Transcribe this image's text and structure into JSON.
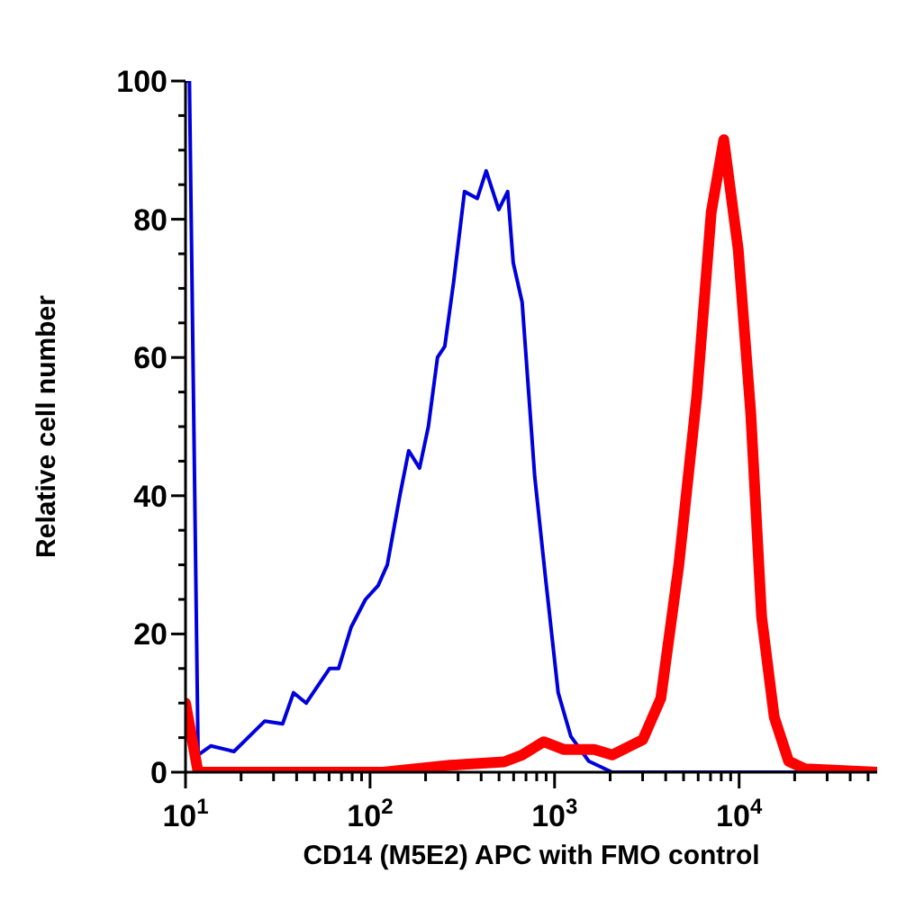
{
  "chart_data": {
    "type": "line",
    "xlabel": "CD14 (M5E2) APC with FMO control",
    "ylabel": "Relative cell number",
    "log": "x",
    "grid": false,
    "legend": false,
    "marker": "none",
    "line_style": "solid",
    "xlim": [
      10,
      56000
    ],
    "xticks": [
      {
        "value": 10,
        "label": "10$^{1}$"
      },
      {
        "value": 20,
        "label": null
      },
      {
        "value": 30,
        "label": null
      },
      {
        "value": 40,
        "label": null
      },
      {
        "value": 50,
        "label": null
      },
      {
        "value": 60,
        "label": null
      },
      {
        "value": 70,
        "label": null
      },
      {
        "value": 80,
        "label": null
      },
      {
        "value": 90,
        "label": null
      },
      {
        "value": 100,
        "label": "10$^{2}$"
      },
      {
        "value": 200,
        "label": null
      },
      {
        "value": 300,
        "label": null
      },
      {
        "value": 400,
        "label": null
      },
      {
        "value": 500,
        "label": null
      },
      {
        "value": 600,
        "label": null
      },
      {
        "value": 700,
        "label": null
      },
      {
        "value": 800,
        "label": null
      },
      {
        "value": 900,
        "label": null
      },
      {
        "value": 1000,
        "label": "10$^{3}$"
      },
      {
        "value": 2000,
        "label": null
      },
      {
        "value": 3000,
        "label": null
      },
      {
        "value": 4000,
        "label": null
      },
      {
        "value": 5000,
        "label": null
      },
      {
        "value": 6000,
        "label": null
      },
      {
        "value": 7000,
        "label": null
      },
      {
        "value": 8000,
        "label": null
      },
      {
        "value": 9000,
        "label": null
      },
      {
        "value": 10000,
        "label": "10$^{4}$"
      },
      {
        "value": 20000,
        "label": null
      },
      {
        "value": 30000,
        "label": null
      },
      {
        "value": 40000,
        "label": null
      },
      {
        "value": 50000,
        "label": null
      }
    ],
    "ylim": [
      0,
      100
    ],
    "yticks": [
      0,
      {
        "value": 5,
        "label": null
      },
      {
        "value": 10,
        "label": null
      },
      {
        "value": 15,
        "label": null
      },
      20,
      {
        "value": 25,
        "label": null
      },
      {
        "value": 30,
        "label": null
      },
      {
        "value": 35,
        "label": null
      },
      40,
      {
        "value": 45,
        "label": null
      },
      {
        "value": 50,
        "label": null
      },
      {
        "value": 55,
        "label": null
      },
      60,
      {
        "value": 65,
        "label": null
      },
      {
        "value": 70,
        "label": null
      },
      {
        "value": 75,
        "label": null
      },
      80,
      {
        "value": 85,
        "label": null
      },
      {
        "value": 90,
        "label": null
      },
      {
        "value": 95,
        "label": null
      },
      100
    ],
    "series": [
      {
        "color": "#0000dd",
        "x": [
          10,
          10.5,
          11.7,
          13.7,
          18.3,
          26.9,
          33.6,
          38.5,
          45.1,
          60.3,
          67.5,
          79,
          94.5,
          110.6,
          124,
          145,
          162,
          185.5,
          207,
          232,
          254,
          284,
          325,
          381,
          426,
          498,
          557,
          597,
          667,
          781,
          894,
          1046,
          1224,
          1532,
          2052,
          56000
        ],
        "values": [
          100,
          100,
          2.5,
          3.8,
          3,
          7.4,
          7,
          11.5,
          10,
          15,
          15,
          21,
          25,
          27,
          30,
          40,
          46.5,
          44,
          50,
          60,
          61.6,
          71,
          84,
          83,
          87,
          81.4,
          84,
          73.7,
          68,
          42.7,
          28,
          11.5,
          5.2,
          1.6,
          0,
          0
        ]
      },
      {
        "color": "#ff0000",
        "x": [
          10,
          11.7,
          118,
          272,
          533,
          667,
          873,
          1119,
          1640,
          2052,
          3006,
          3765,
          4714,
          5900,
          7060,
          8260,
          9890,
          11560,
          13240,
          15490,
          18540,
          22700,
          56000
        ],
        "values": [
          10,
          0,
          0,
          1,
          1.5,
          2.5,
          4.4,
          3.3,
          3.3,
          2.5,
          4.7,
          10.7,
          30,
          54.5,
          81,
          91.5,
          75.6,
          52,
          22.5,
          8,
          1.6,
          0.5,
          0
        ]
      }
    ]
  }
}
